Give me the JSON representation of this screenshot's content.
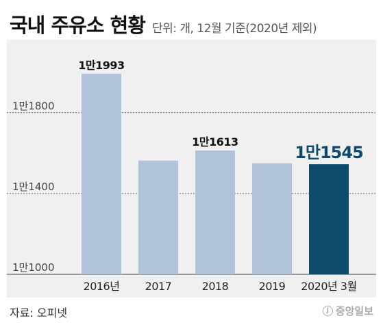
{
  "header": {
    "title": "국내 주유소 현황",
    "subtitle": "단위: 개, 12월 기준(2020년 제외)"
  },
  "footer": {
    "source": "자료: 오피넷",
    "logo_text": "중앙일보"
  },
  "colors": {
    "bar": "#b0c3da",
    "bar_highlight": "#0d4a6b",
    "panel_background": "#f0f0f0",
    "gridline": "#666666",
    "label_text": "#111111",
    "highlight_text": "#0d4a6b"
  },
  "chart_data": {
    "type": "bar",
    "title": "국내 주유소 현황",
    "subtitle": "단위: 개, 12월 기준(2020년 제외)",
    "categories": [
      "2016년",
      "2017",
      "2018",
      "2019",
      "2020년 3월"
    ],
    "values": [
      11993,
      11563,
      11613,
      11550,
      11545
    ],
    "ylim": [
      11000,
      12050
    ],
    "yticks": [
      11000,
      11400,
      11800
    ],
    "ytick_labels": [
      "1만1000",
      "1만1400",
      "1만1800"
    ],
    "data_labels": [
      "1만1993",
      "",
      "1만1613",
      "",
      "1만1545"
    ],
    "highlight_index": 4,
    "grid": true,
    "legend": "none"
  }
}
